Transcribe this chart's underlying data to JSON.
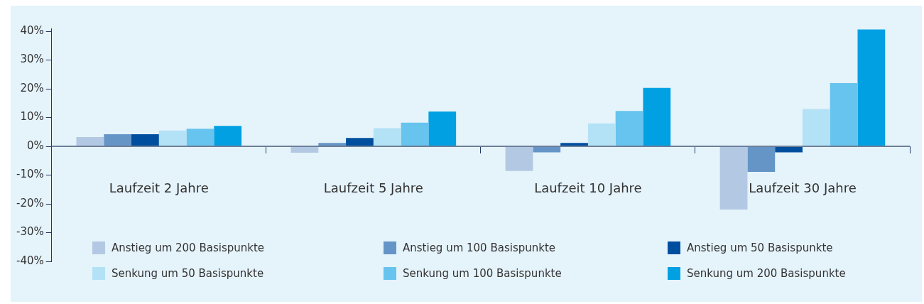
{
  "chart_data": {
    "type": "bar",
    "categories": [
      "Laufzeit 2 Jahre",
      "Laufzeit 5 Jahre",
      "Laufzeit 10 Jahre",
      "Laufzeit 30 Jahre"
    ],
    "series": [
      {
        "name": "Anstieg um 200 Basispunkte",
        "color": "#b3c9e3",
        "values": [
          3.2,
          -2.2,
          -8.6,
          -22.0
        ]
      },
      {
        "name": "Anstieg um 100 Basispunkte",
        "color": "#6594c7",
        "values": [
          4.2,
          1.2,
          -2.1,
          -8.9
        ]
      },
      {
        "name": "Anstieg um 50 Basispunkte",
        "color": "#004f9f",
        "values": [
          4.2,
          2.9,
          1.2,
          -2.1
        ]
      },
      {
        "name": "Senkung um 50 Basispunkte",
        "color": "#b3e2f6",
        "values": [
          5.5,
          6.3,
          8.0,
          13.0
        ]
      },
      {
        "name": "Senkung um 100 Basispunkte",
        "color": "#66c4ee",
        "values": [
          6.1,
          8.2,
          12.3,
          22.0
        ]
      },
      {
        "name": "Senkung um 200 Basispunkte",
        "color": "#00a0e3",
        "values": [
          7.1,
          12.1,
          20.3,
          40.6
        ]
      }
    ],
    "ylim": [
      -40,
      41
    ],
    "yticks": [
      {
        "value": -40,
        "label": "-40%"
      },
      {
        "value": -30,
        "label": "-30%"
      },
      {
        "value": -20,
        "label": "-20%"
      },
      {
        "value": -10,
        "label": "-10%"
      },
      {
        "value": 0,
        "label": "0%"
      },
      {
        "value": 10,
        "label": "10%"
      },
      {
        "value": 20,
        "label": "20%"
      },
      {
        "value": 30,
        "label": "30%"
      },
      {
        "value": 40,
        "label": "40%"
      }
    ],
    "ref_lines": [
      {
        "axis": "y",
        "value": 0,
        "color": "#6d7f99"
      }
    ],
    "grid": false,
    "legend": "bottom"
  }
}
